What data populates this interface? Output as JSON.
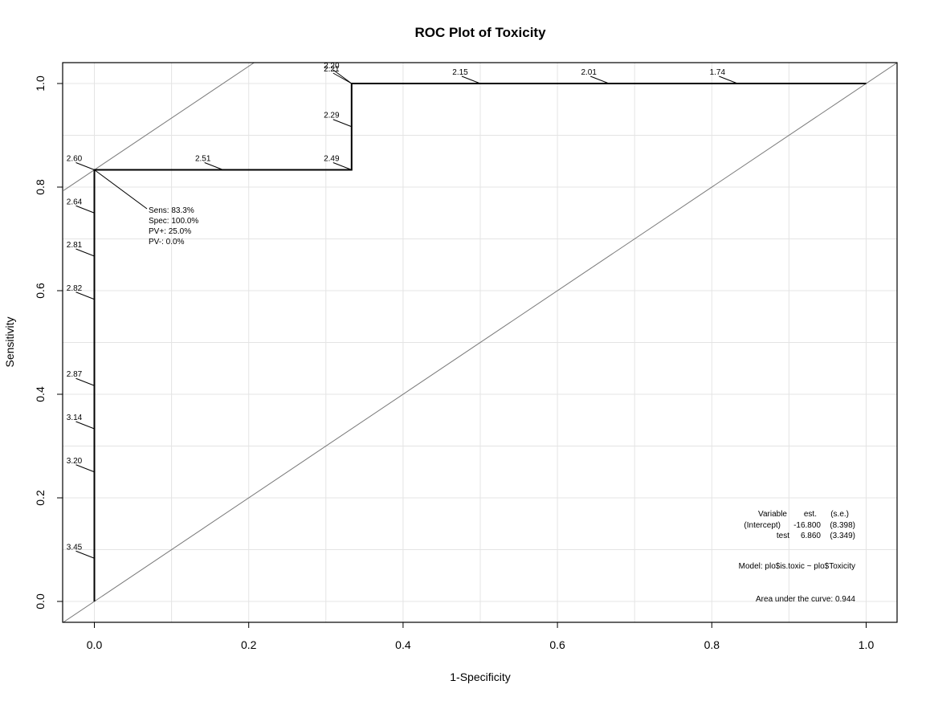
{
  "chart_data": {
    "type": "line",
    "title": "ROC Plot of Toxicity",
    "xlabel": "1-Specificity",
    "ylabel": "Sensitivity",
    "xlim": [
      -0.04,
      1.04
    ],
    "ylim": [
      -0.04,
      1.04
    ],
    "x_ticks": [
      "0.0",
      "0.2",
      "0.4",
      "0.6",
      "0.8",
      "1.0"
    ],
    "y_ticks": [
      "0.0",
      "0.2",
      "0.4",
      "0.6",
      "0.8",
      "1.0"
    ],
    "x_tick_values": [
      0,
      0.2,
      0.4,
      0.6,
      0.8,
      1.0
    ],
    "y_tick_values": [
      0,
      0.2,
      0.4,
      0.6,
      0.8,
      1.0
    ],
    "grid": true,
    "roc_curve": {
      "x": [
        0,
        0,
        0.3333,
        0.3333,
        1.0
      ],
      "y": [
        0,
        0.8333,
        0.8333,
        1.0,
        1.0
      ]
    },
    "reference_lines": [
      {
        "slope": 1,
        "intercept": 0
      },
      {
        "slope": 1,
        "intercept": 0.8333
      }
    ],
    "cutoff_labels": [
      {
        "label": "3.45",
        "x": 0,
        "y": 0.0833
      },
      {
        "label": "3.20",
        "x": 0,
        "y": 0.25
      },
      {
        "label": "3.14",
        "x": 0,
        "y": 0.3333
      },
      {
        "label": "2.87",
        "x": 0,
        "y": 0.4167
      },
      {
        "label": "2.82",
        "x": 0,
        "y": 0.5833
      },
      {
        "label": "2.81",
        "x": 0,
        "y": 0.6667
      },
      {
        "label": "2.64",
        "x": 0,
        "y": 0.75
      },
      {
        "label": "2.60",
        "x": 0,
        "y": 0.8333
      },
      {
        "label": "2.51",
        "x": 0.1667,
        "y": 0.8333
      },
      {
        "label": "2.49",
        "x": 0.3333,
        "y": 0.8333
      },
      {
        "label": "2.29",
        "x": 0.3333,
        "y": 0.9167
      },
      {
        "label": "2.21",
        "x": 0.3333,
        "y": 1.0
      },
      {
        "label": "2.20",
        "x": 0.3333,
        "y": 1.0
      },
      {
        "label": "2.15",
        "x": 0.5,
        "y": 1.0
      },
      {
        "label": "2.01",
        "x": 0.6667,
        "y": 1.0
      },
      {
        "label": "1.74",
        "x": 0.8333,
        "y": 1.0
      }
    ],
    "optimal_point": {
      "x": 0,
      "y": 0.8333,
      "lines": [
        "Sens: 83.3%",
        "Spec: 100.0%",
        "PV+: 25.0%",
        "PV-: 0.0%"
      ]
    },
    "model_table": {
      "header": [
        "Variable",
        "est.",
        "(s.e.)"
      ],
      "rows": [
        [
          "(Intercept)",
          "-16.800",
          "(8.398)"
        ],
        [
          "test",
          "6.860",
          "(3.349)"
        ]
      ]
    },
    "model_text": "Model:  plo$is.toxic ~ plo$Toxicity",
    "auc_text": "Area under the curve: 0.944"
  }
}
